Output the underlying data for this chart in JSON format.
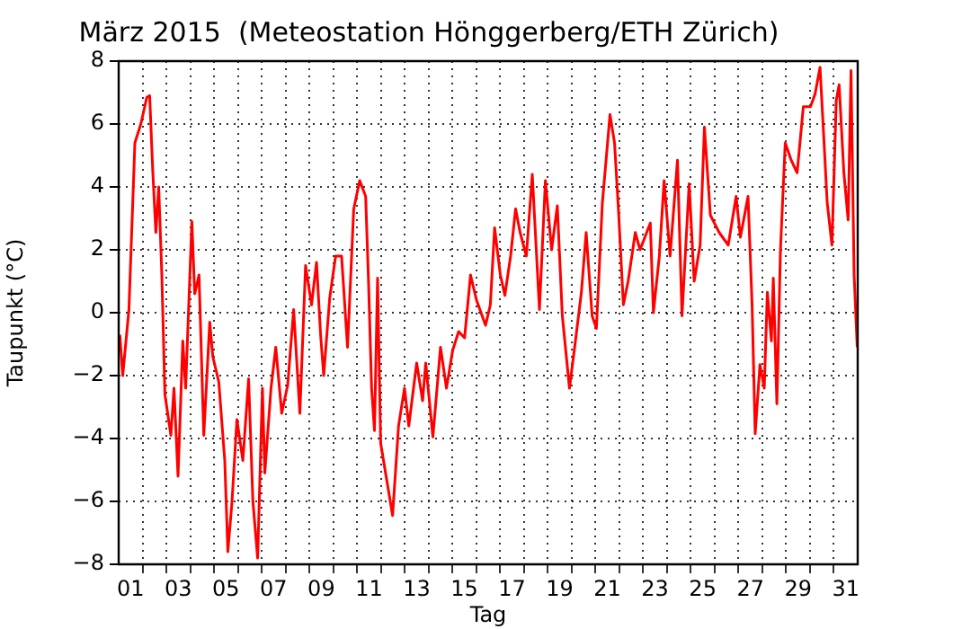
{
  "chart_data": {
    "type": "line",
    "title": "März 2015  (Meteostation Hönggerberg/ETH Zürich)",
    "xlabel": "Tag",
    "ylabel": "Taupunkt (°C)",
    "x": [
      1.05,
      1.17,
      1.43,
      1.68,
      1.93,
      2.18,
      2.3,
      2.43,
      2.56,
      2.68,
      2.81,
      2.94,
      3.19,
      3.32,
      3.49,
      3.69,
      3.81,
      4.07,
      4.19,
      4.37,
      4.57,
      4.82,
      4.95,
      5.2,
      5.45,
      5.58,
      5.75,
      5.96,
      6.21,
      6.45,
      6.63,
      6.83,
      7.03,
      7.13,
      7.39,
      7.59,
      7.84,
      8.09,
      8.34,
      8.6,
      8.84,
      9.09,
      9.3,
      9.47,
      9.6,
      9.85,
      10.1,
      10.35,
      10.6,
      10.86,
      11.11,
      11.36,
      11.48,
      11.61,
      11.73,
      11.86,
      11.99,
      12.24,
      12.49,
      12.74,
      12.99,
      13.17,
      13.5,
      13.75,
      13.88,
      14.18,
      14.5,
      14.75,
      15.01,
      15.26,
      15.51,
      15.76,
      16.01,
      16.39,
      16.59,
      16.77,
      17.01,
      17.2,
      17.44,
      17.65,
      17.84,
      18.1,
      18.35,
      18.65,
      18.9,
      19.16,
      19.4,
      19.61,
      19.91,
      20.16,
      20.41,
      20.61,
      20.86,
      21.04,
      21.29,
      21.61,
      21.8,
      21.97,
      22.17,
      22.37,
      22.67,
      22.87,
      23.3,
      23.43,
      23.68,
      23.88,
      24.13,
      24.44,
      24.63,
      24.93,
      25.14,
      25.39,
      25.57,
      25.82,
      26.19,
      26.57,
      26.9,
      27.08,
      27.4,
      27.57,
      27.7,
      27.9,
      28.08,
      28.21,
      28.38,
      28.46,
      28.61,
      28.76,
      28.96,
      29.21,
      29.46,
      29.72,
      30.02,
      30.21,
      30.42,
      30.59,
      30.72,
      30.92,
      31.1,
      31.22,
      31.42,
      31.6,
      31.72,
      31.85,
      31.98
    ],
    "series": [
      {
        "color": "#ff0000",
        "values": [
          -0.7,
          -2.0,
          0.1,
          5.4,
          6.0,
          6.85,
          6.9,
          4.5,
          2.55,
          4.0,
          1.2,
          -2.6,
          -3.9,
          -2.4,
          -5.2,
          -0.9,
          -2.4,
          2.9,
          0.6,
          1.2,
          -3.9,
          -0.3,
          -1.4,
          -2.2,
          -4.7,
          -7.6,
          -6.05,
          -3.4,
          -4.7,
          -2.1,
          -6.0,
          -7.8,
          -2.4,
          -5.1,
          -2.4,
          -1.1,
          -3.2,
          -2.3,
          0.1,
          -3.2,
          1.5,
          0.25,
          1.6,
          -0.7,
          -2.0,
          0.45,
          1.8,
          1.8,
          -1.1,
          3.3,
          4.2,
          3.7,
          1.0,
          -2.4,
          -3.75,
          1.1,
          -4.15,
          -5.3,
          -6.45,
          -3.6,
          -2.4,
          -3.6,
          -1.6,
          -2.8,
          -1.6,
          -3.95,
          -1.1,
          -2.4,
          -1.2,
          -0.6,
          -0.8,
          1.2,
          0.4,
          -0.4,
          0.25,
          2.7,
          1.2,
          0.55,
          1.8,
          3.3,
          2.55,
          1.8,
          4.4,
          0.1,
          4.2,
          2.0,
          3.4,
          -0.1,
          -2.4,
          -0.9,
          0.65,
          2.55,
          -0.1,
          -0.5,
          3.5,
          6.3,
          5.4,
          3.2,
          0.25,
          1.0,
          2.55,
          2.0,
          2.85,
          0,
          1.8,
          4.2,
          1.8,
          4.85,
          -0.1,
          4.1,
          1.0,
          2.15,
          5.9,
          3.1,
          2.55,
          2.15,
          3.7,
          2.4,
          3.7,
          0.25,
          -3.85,
          -1.65,
          -2.4,
          0.65,
          -0.9,
          1.1,
          -2.9,
          2.0,
          5.4,
          4.85,
          4.45,
          6.55,
          6.55,
          6.95,
          7.8,
          5.4,
          3.5,
          2.15,
          6.75,
          7.25,
          4.45,
          2.95,
          7.7,
          1.2,
          -1.1
        ]
      }
    ],
    "xlim": [
      1,
      32
    ],
    "xticks": [
      {
        "value": 1.5,
        "label": "01"
      },
      {
        "value": 2,
        "label": null
      },
      {
        "value": 3,
        "label": null
      },
      {
        "value": 3.5,
        "label": "03"
      },
      {
        "value": 4,
        "label": null
      },
      {
        "value": 5,
        "label": null
      },
      {
        "value": 5.5,
        "label": "05"
      },
      {
        "value": 6,
        "label": null
      },
      {
        "value": 7,
        "label": null
      },
      {
        "value": 7.5,
        "label": "07"
      },
      {
        "value": 8,
        "label": null
      },
      {
        "value": 9,
        "label": null
      },
      {
        "value": 9.5,
        "label": "09"
      },
      {
        "value": 10,
        "label": null
      },
      {
        "value": 11,
        "label": null
      },
      {
        "value": 11.5,
        "label": "11"
      },
      {
        "value": 12,
        "label": null
      },
      {
        "value": 13,
        "label": null
      },
      {
        "value": 13.5,
        "label": "13"
      },
      {
        "value": 14,
        "label": null
      },
      {
        "value": 15,
        "label": null
      },
      {
        "value": 15.5,
        "label": "15"
      },
      {
        "value": 16,
        "label": null
      },
      {
        "value": 17,
        "label": null
      },
      {
        "value": 17.5,
        "label": "17"
      },
      {
        "value": 18,
        "label": null
      },
      {
        "value": 19,
        "label": null
      },
      {
        "value": 19.5,
        "label": "19"
      },
      {
        "value": 20,
        "label": null
      },
      {
        "value": 21,
        "label": null
      },
      {
        "value": 21.5,
        "label": "21"
      },
      {
        "value": 22,
        "label": null
      },
      {
        "value": 23,
        "label": null
      },
      {
        "value": 23.5,
        "label": "23"
      },
      {
        "value": 24,
        "label": null
      },
      {
        "value": 25,
        "label": null
      },
      {
        "value": 25.5,
        "label": "25"
      },
      {
        "value": 26,
        "label": null
      },
      {
        "value": 27,
        "label": null
      },
      {
        "value": 27.5,
        "label": "27"
      },
      {
        "value": 28,
        "label": null
      },
      {
        "value": 29,
        "label": null
      },
      {
        "value": 29.5,
        "label": "29"
      },
      {
        "value": 30,
        "label": null
      },
      {
        "value": 31,
        "label": null
      },
      {
        "value": 31.5,
        "label": "31"
      }
    ],
    "ylim": [
      -8,
      8
    ],
    "yticks": [
      -8,
      -6,
      -4,
      -2,
      0,
      2,
      4,
      6,
      8
    ],
    "grid": true,
    "marker": "none",
    "line_style": "solid"
  }
}
